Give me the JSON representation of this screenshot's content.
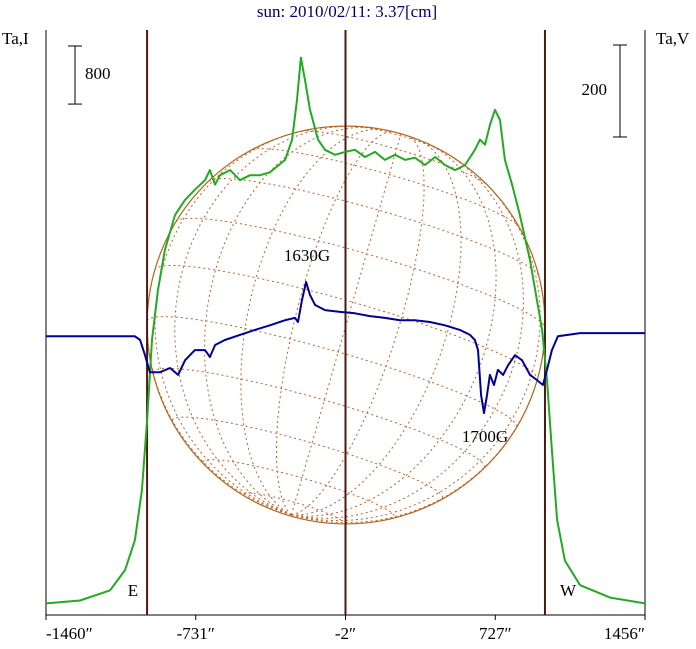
{
  "chart_data": {
    "type": "line",
    "title": "sun: 2010/02/11: 3.37[cm]",
    "ylabel": "Ta,I",
    "y2label": "Ta,V",
    "xlim": [
      -1460,
      1456
    ],
    "xticks": [
      {
        "value": -1460,
        "label": "-1460″"
      },
      {
        "value": -731,
        "label": "-731″"
      },
      {
        "value": -2,
        "label": "-2″"
      },
      {
        "value": 727,
        "label": "727″"
      },
      {
        "value": 1456,
        "label": "1456″"
      }
    ],
    "ylim": [
      -160,
      7900
    ],
    "y2lim": [
      -613,
      659
    ],
    "i_scale": 800,
    "v_scale": 200,
    "vertical_lines": [
      -968,
      -2,
      969
    ],
    "annotations": [
      "1630G",
      "1700G",
      "E",
      "W"
    ],
    "series": [
      {
        "color": "#22aa22",
        "x": [
          -1460,
          -1294,
          -1148,
          -1075,
          -1027,
          -993,
          -968,
          -944,
          -915,
          -881,
          -832,
          -783,
          -735,
          -686,
          -662,
          -637,
          -613,
          -564,
          -516,
          -467,
          -418,
          -370,
          -296,
          -262,
          -238,
          -219,
          -199,
          -175,
          -136,
          -102,
          -53,
          -4,
          44,
          93,
          142,
          190,
          239,
          288,
          336,
          385,
          434,
          482,
          531,
          580,
          628,
          653,
          677,
          701,
          726,
          750,
          774,
          809,
          847,
          896,
          930,
          955,
          979,
          1003,
          1028,
          1066,
          1140,
          1286,
          1456
        ],
        "values": [
          0,
          40,
          180,
          460,
          870,
          1560,
          2520,
          3630,
          4320,
          4870,
          5350,
          5560,
          5700,
          5830,
          5970,
          5770,
          5900,
          5970,
          5830,
          5900,
          5900,
          5940,
          6110,
          6390,
          6940,
          7520,
          7210,
          6800,
          6390,
          6250,
          6180,
          6220,
          6250,
          6150,
          6220,
          6110,
          6180,
          6110,
          6140,
          6040,
          6150,
          6040,
          5970,
          6040,
          6250,
          6390,
          6320,
          6590,
          6800,
          6660,
          6110,
          5770,
          5350,
          4730,
          4180,
          3770,
          3080,
          2110,
          1150,
          590,
          250,
          80,
          0
        ]
      },
      {
        "color": "#000099",
        "axis": "y2",
        "x": [
          -1460,
          -1197,
          -1027,
          -1002,
          -978,
          -954,
          -905,
          -856,
          -817,
          -783,
          -735,
          -686,
          -662,
          -637,
          -589,
          -516,
          -443,
          -370,
          -296,
          -248,
          -233,
          -214,
          -194,
          -175,
          -150,
          -102,
          -29,
          44,
          117,
          190,
          263,
          336,
          409,
          482,
          555,
          604,
          628,
          643,
          658,
          672,
          687,
          701,
          721,
          740,
          765,
          789,
          823,
          857,
          896,
          930,
          959,
          979,
          1003,
          1032,
          1140,
          1456
        ],
        "values": [
          -7,
          -7,
          -7,
          -15,
          -48,
          -85,
          -85,
          -76,
          -91,
          -59,
          -37,
          -37,
          -52,
          -26,
          -15,
          -4,
          7,
          17,
          28,
          33,
          24,
          72,
          111,
          83,
          61,
          50,
          46,
          43,
          37,
          33,
          28,
          28,
          24,
          17,
          7,
          -4,
          -15,
          -37,
          -135,
          -174,
          -135,
          -91,
          -113,
          -80,
          -91,
          -70,
          -48,
          -59,
          -91,
          -102,
          -113,
          -80,
          -37,
          -7,
          0,
          0
        ]
      }
    ]
  }
}
